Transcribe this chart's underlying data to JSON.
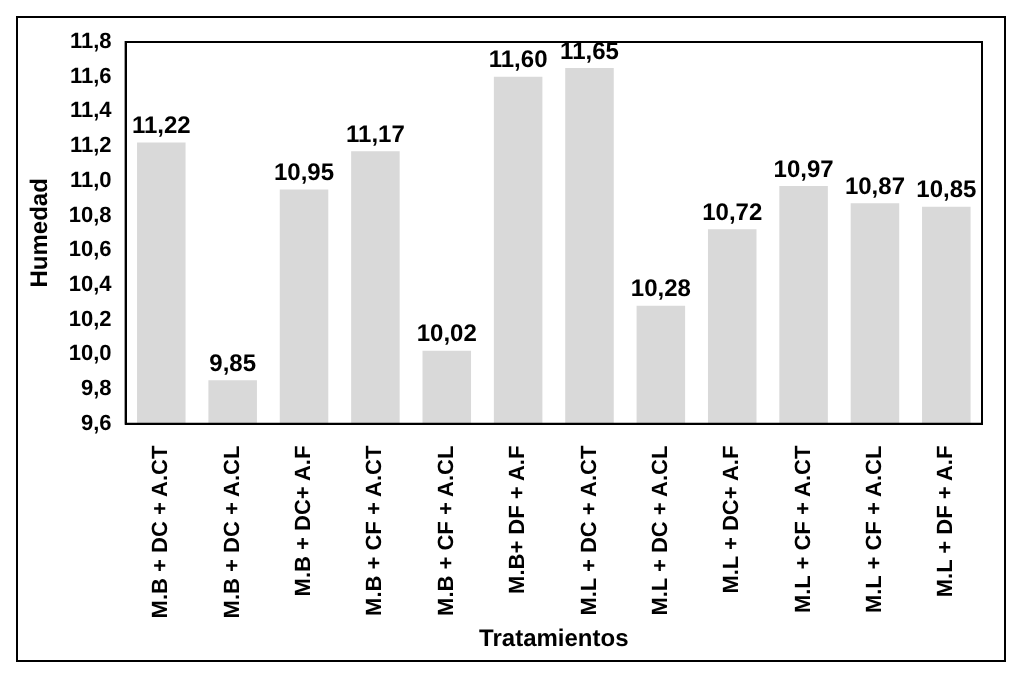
{
  "chart_data": {
    "type": "bar",
    "xlabel": "Tratamientos",
    "ylabel": "Humedad",
    "categories": [
      "M.B + DC + A.CT",
      "M.B + DC + A.CL",
      "M.B + DC+ A.F",
      "M.B + CF + A.CT",
      "M.B + CF + A.CL",
      "M.B+ DF + A.F",
      "M.L + DC + A.CT",
      "M.L + DC + A.CL",
      "M.L + DC+ A.F",
      "M.L + CF + A.CT",
      "M.L + CF + A.CL",
      "M.L + DF + A.F"
    ],
    "values": [
      11.22,
      9.85,
      10.95,
      11.17,
      10.02,
      11.6,
      11.65,
      10.28,
      10.72,
      10.97,
      10.87,
      10.85
    ],
    "value_labels": [
      "11,22",
      "9,85",
      "10,95",
      "11,17",
      "10,02",
      "11,60",
      "11,65",
      "10,28",
      "10,72",
      "10,97",
      "10,87",
      "10,85"
    ],
    "color": "#d9d9d9",
    "ylim": [
      9.6,
      11.8
    ],
    "yticks": [
      {
        "value": 9.6,
        "label": "9,6"
      },
      {
        "value": 9.8,
        "label": "9,8"
      },
      {
        "value": 10.0,
        "label": "10,0"
      },
      {
        "value": 10.2,
        "label": "10,2"
      },
      {
        "value": 10.4,
        "label": "10,4"
      },
      {
        "value": 10.6,
        "label": "10,6"
      },
      {
        "value": 10.8,
        "label": "10,8"
      },
      {
        "value": 11.0,
        "label": "11,0"
      },
      {
        "value": 11.2,
        "label": "11,2"
      },
      {
        "value": 11.4,
        "label": "11,4"
      },
      {
        "value": 11.6,
        "label": "11,6"
      },
      {
        "value": 11.8,
        "label": "11,8"
      }
    ],
    "grid": false,
    "legend": false
  }
}
